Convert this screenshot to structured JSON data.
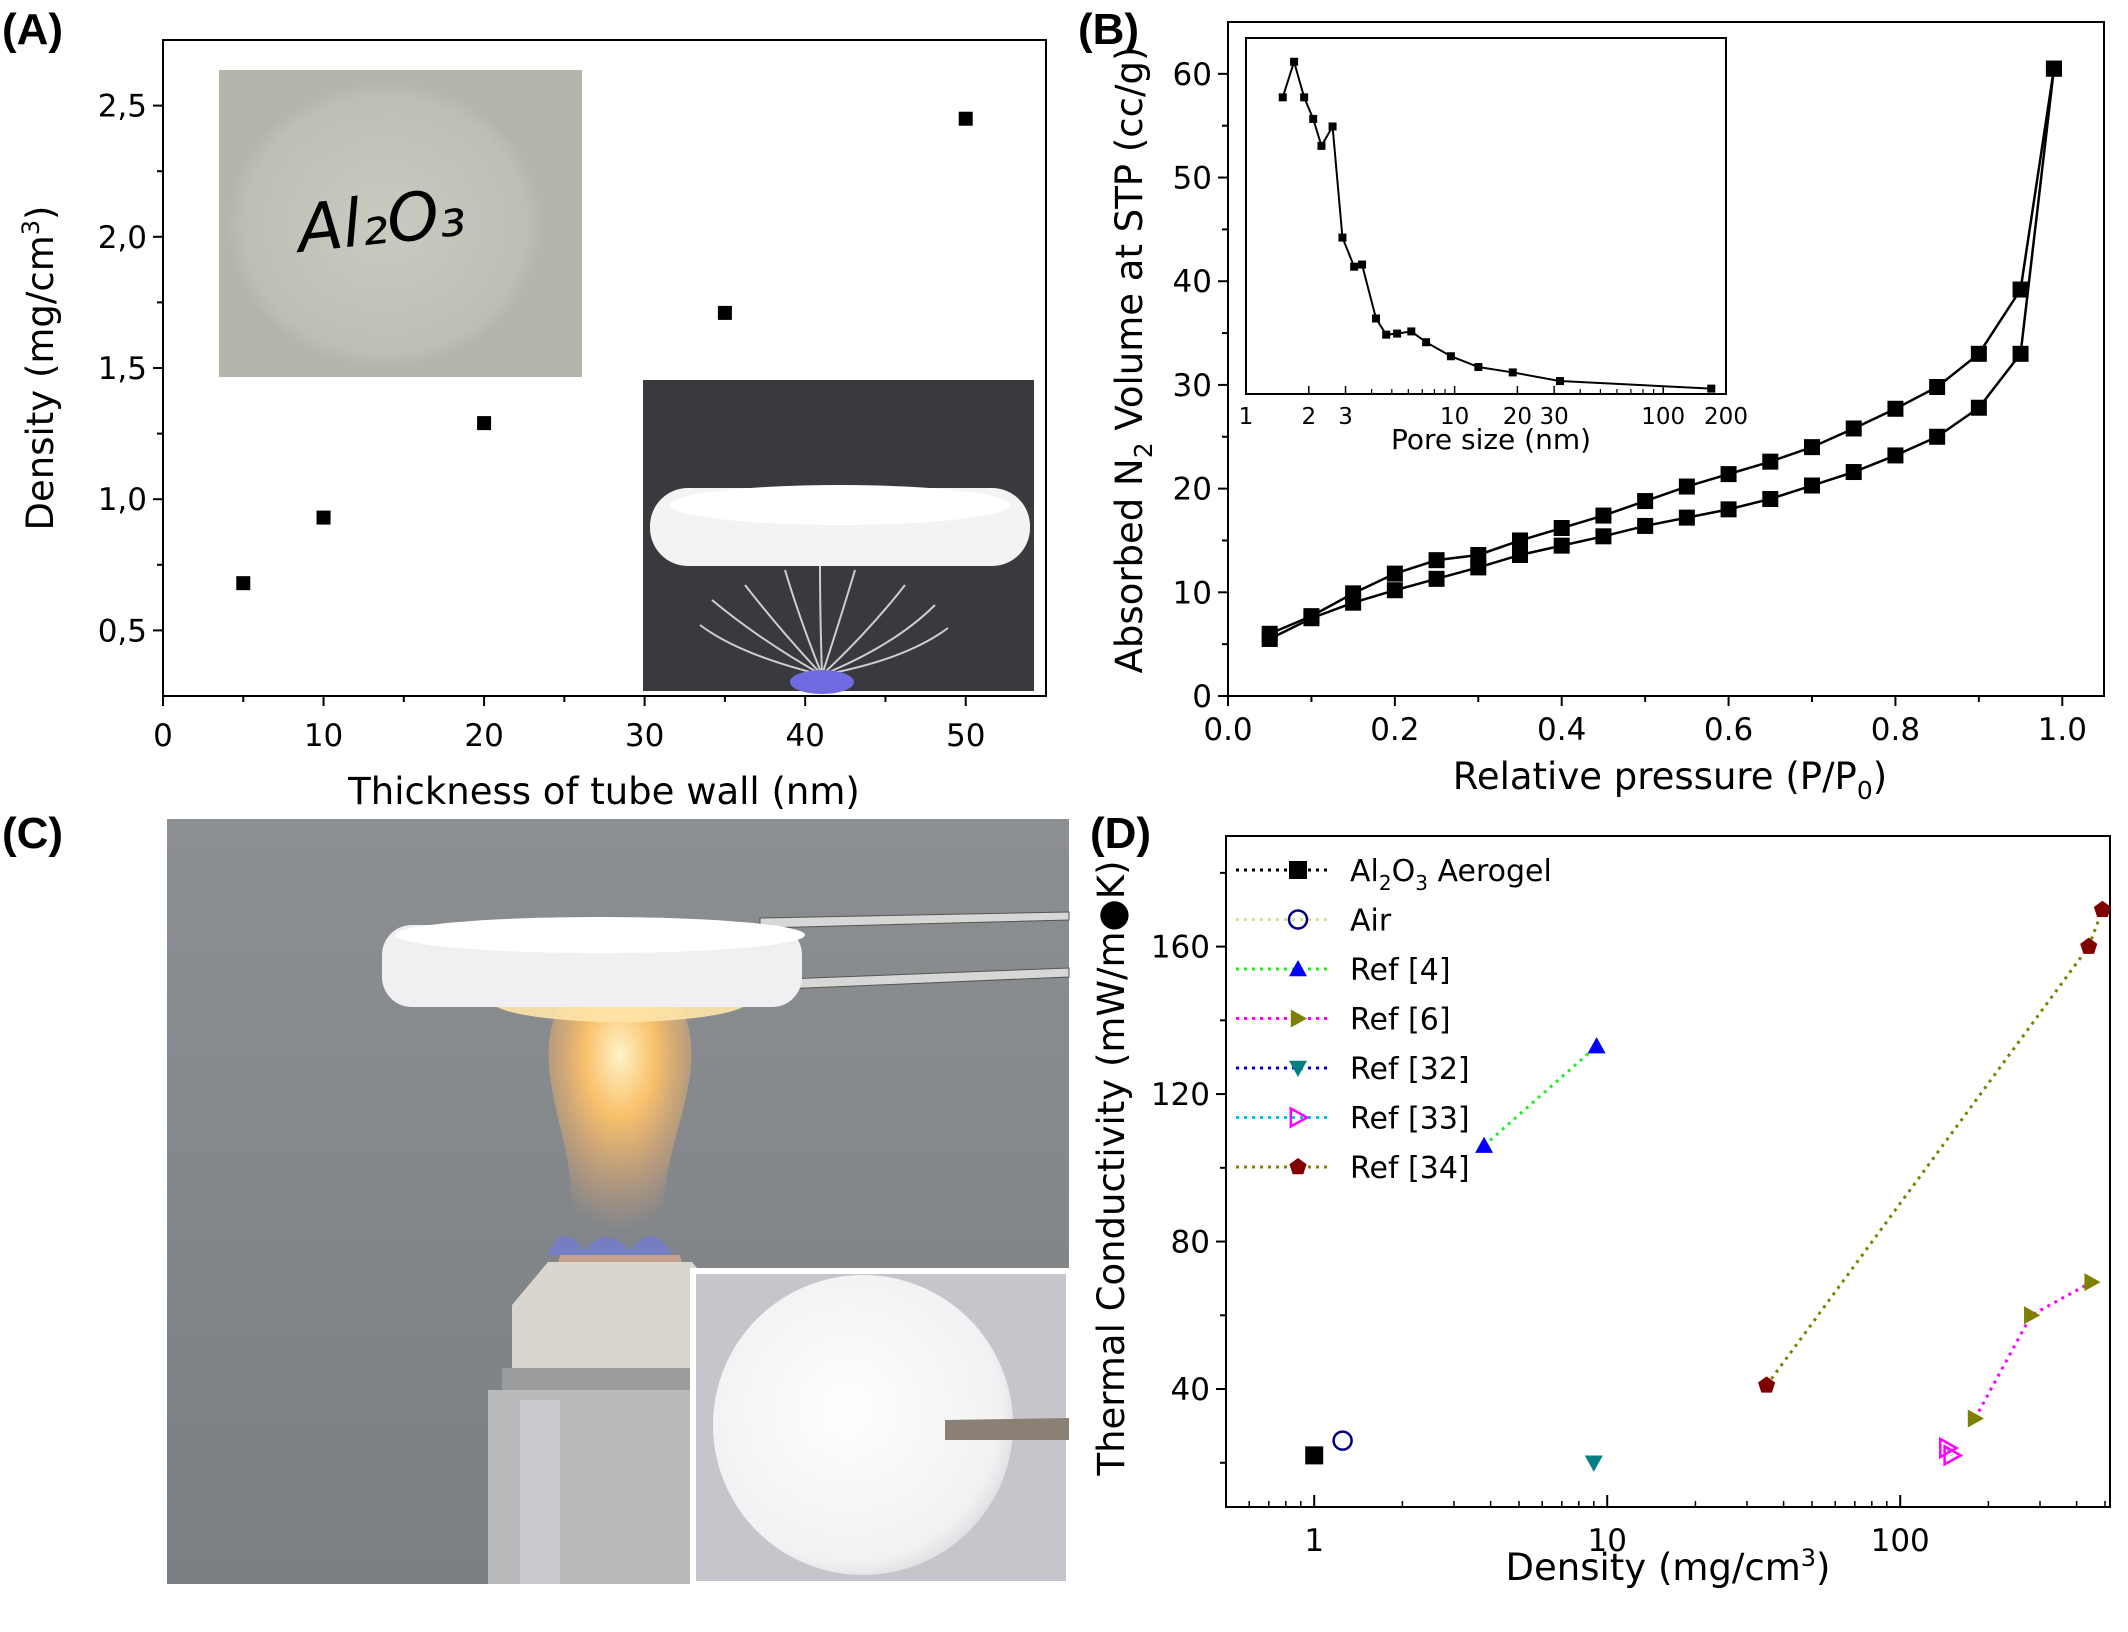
{
  "panel_labels": {
    "a": "(A)",
    "b": "(B)",
    "c": "(C)",
    "d": "(D)"
  },
  "photos": {
    "a_sample_text": "Al₂O₃",
    "a_top_left": "aerogel disc with handwritten label",
    "a_bottom_right": "aerogel resting on feather",
    "c_main": "aerogel held over alcohol burner flame",
    "c_inset": "aerogel disc held with tweezers"
  },
  "colors": {
    "ref4": "#0000ff",
    "ref4_line": "#22ee22",
    "ref6": "#808000",
    "ref6_line": "#ff00ff",
    "ref32": "#008080",
    "ref32_line": "#0000cc",
    "ref33": "#ff00ff",
    "ref33_line": "#00cccc",
    "ref34": "#800000",
    "ref34_line": "#808000",
    "air": "#000080",
    "air_line": "#dddd99"
  },
  "chart_data": [
    {
      "id": "A",
      "type": "scatter",
      "xlabel": "Thickness of tube wall (nm)",
      "ylabel": "Density (mg/cm",
      "ylabel_sup": "3",
      "ylabel_end": ")",
      "xlim": [
        0,
        55
      ],
      "ylim": [
        0.25,
        2.75
      ],
      "xticks": [
        "0",
        "10",
        "20",
        "30",
        "40",
        "50"
      ],
      "yticks": [
        "0,5",
        "1,0",
        "1,5",
        "2,0",
        "2,5"
      ],
      "series": [
        {
          "x": [
            5,
            10,
            20,
            35,
            50
          ],
          "y": [
            0.68,
            0.93,
            1.29,
            1.71,
            2.45
          ]
        }
      ]
    },
    {
      "id": "B",
      "type": "line",
      "xlabel": "Relative pressure (P/P",
      "xlabel_sub": "0",
      "xlabel_end": ")",
      "ylabel_pre": "Absorbed N",
      "ylabel_sub": "2",
      "ylabel_post": " Volume at STP (cc/g)",
      "xlim": [
        0,
        1.05
      ],
      "ylim": [
        0,
        65
      ],
      "xticks": [
        "0.0",
        "0.2",
        "0.4",
        "0.6",
        "0.8",
        "1.0"
      ],
      "yticks": [
        "0",
        "10",
        "20",
        "30",
        "40",
        "50",
        "60"
      ],
      "series": [
        {
          "x": [
            0.05,
            0.1,
            0.15,
            0.2,
            0.25,
            0.3,
            0.35,
            0.4,
            0.45,
            0.5,
            0.55,
            0.6,
            0.65,
            0.7,
            0.75,
            0.8,
            0.85,
            0.9,
            0.95,
            0.99
          ],
          "y": [
            5.5,
            7.5,
            9.0,
            10.2,
            11.3,
            12.4,
            13.6,
            14.5,
            15.4,
            16.4,
            17.2,
            18.0,
            19.0,
            20.3,
            21.6,
            23.2,
            25.0,
            27.8,
            33.0,
            60.5
          ]
        },
        {
          "x": [
            0.99,
            0.95,
            0.9,
            0.85,
            0.8,
            0.75,
            0.7,
            0.65,
            0.6,
            0.55,
            0.5,
            0.45,
            0.4,
            0.35,
            0.3,
            0.25,
            0.2,
            0.15,
            0.1,
            0.05
          ],
          "y": [
            60.5,
            39.2,
            33.0,
            29.8,
            27.7,
            25.8,
            24.0,
            22.6,
            21.4,
            20.2,
            18.8,
            17.4,
            16.2,
            15.0,
            13.6,
            13.1,
            11.8,
            9.9,
            7.7,
            6.0
          ]
        }
      ],
      "inset": {
        "type": "line",
        "xlabel": "Pore size (nm)",
        "xscale": "log",
        "xlim": [
          1,
          200
        ],
        "ylim": [
          29,
          62
        ],
        "xticks": [
          {
            "v": 1,
            "t": "1"
          },
          {
            "v": 2,
            "t": "2"
          },
          {
            "v": 3,
            "t": "3"
          },
          {
            "v": 10,
            "t": "10"
          },
          {
            "v": 20,
            "t": "20"
          },
          {
            "v": 30,
            "t": "30"
          },
          {
            "v": 100,
            "t": "100"
          },
          {
            "v": 200,
            "t": "200"
          }
        ],
        "series": [
          {
            "x": [
              1.5,
              1.7,
              1.9,
              2.1,
              2.3,
              2.6,
              2.9,
              3.3,
              3.6,
              4.2,
              4.7,
              5.3,
              6.2,
              7.3,
              9.6,
              13,
              19,
              32,
              170
            ],
            "y": [
              56.5,
              59.8,
              56.5,
              54.5,
              52.0,
              53.8,
              43.5,
              40.8,
              41.0,
              36.0,
              34.5,
              34.6,
              34.8,
              33.8,
              32.5,
              31.5,
              31.0,
              30.2,
              29.5
            ]
          }
        ]
      }
    },
    {
      "id": "D",
      "type": "scatter",
      "xlabel": "Density (mg/cm",
      "xlabel_sup": "3",
      "xlabel_end": ")",
      "ylabel": "Thermal Conductivity (mW/m●K)",
      "xscale": "log",
      "xlim": [
        0.5,
        520
      ],
      "ylim": [
        8,
        190
      ],
      "xticks": [
        {
          "v": 1,
          "t": "1"
        },
        {
          "v": 10,
          "t": "10"
        },
        {
          "v": 100,
          "t": "100"
        }
      ],
      "yticks": [
        "40",
        "80",
        "120",
        "160"
      ],
      "series": [
        {
          "name": "Al",
          "name_sub": "2",
          "name_mid": "O",
          "name_sub2": "3",
          "name_end": " Aerogel",
          "marker": "square",
          "x": [
            1.0
          ],
          "y": [
            22
          ]
        },
        {
          "name": "Air",
          "marker": "circle-open",
          "x": [
            1.25
          ],
          "y": [
            26
          ]
        },
        {
          "name": "Ref [4]",
          "marker": "triangle-up",
          "x": [
            3.8,
            9.2
          ],
          "y": [
            106,
            133
          ]
        },
        {
          "name": "Ref [6]",
          "marker": "triangle-right",
          "x": [
            180,
            280,
            450
          ],
          "y": [
            32,
            60,
            69
          ]
        },
        {
          "name": "Ref [32]",
          "marker": "triangle-down",
          "x": [
            9.0
          ],
          "y": [
            20
          ]
        },
        {
          "name": "Ref [33]",
          "marker": "triangle-right-open",
          "x": [
            145,
            150
          ],
          "y": [
            24,
            22
          ]
        },
        {
          "name": "Ref [34]",
          "marker": "pentagon",
          "x": [
            35,
            440,
            490
          ],
          "y": [
            41,
            160,
            170
          ]
        }
      ]
    }
  ]
}
